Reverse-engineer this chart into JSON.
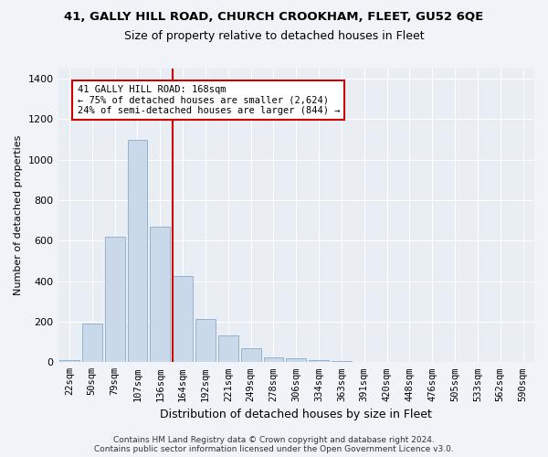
{
  "title1": "41, GALLY HILL ROAD, CHURCH CROOKHAM, FLEET, GU52 6QE",
  "title2": "Size of property relative to detached houses in Fleet",
  "xlabel": "Distribution of detached houses by size in Fleet",
  "ylabel": "Number of detached properties",
  "categories": [
    "22sqm",
    "50sqm",
    "79sqm",
    "107sqm",
    "136sqm",
    "164sqm",
    "192sqm",
    "221sqm",
    "249sqm",
    "278sqm",
    "306sqm",
    "334sqm",
    "363sqm",
    "391sqm",
    "420sqm",
    "448sqm",
    "476sqm",
    "505sqm",
    "533sqm",
    "562sqm",
    "590sqm"
  ],
  "values": [
    10,
    190,
    620,
    1100,
    670,
    425,
    215,
    130,
    70,
    25,
    20,
    10,
    5,
    3,
    1,
    1,
    0,
    0,
    0,
    0,
    0
  ],
  "bar_color": "#c9d9ea",
  "bar_edge_color": "#8aaac8",
  "red_line_color": "#cc0000",
  "annotation_text": "41 GALLY HILL ROAD: 168sqm\n← 75% of detached houses are smaller (2,624)\n24% of semi-detached houses are larger (844) →",
  "annotation_box_color": "#ffffff",
  "annotation_box_edge": "#cc0000",
  "footer1": "Contains HM Land Registry data © Crown copyright and database right 2024.",
  "footer2": "Contains public sector information licensed under the Open Government Licence v3.0.",
  "ylim": [
    0,
    1450
  ],
  "background_color": "#f0f4f8",
  "plot_background": "#e8eef4",
  "title1_fontsize": 9.5,
  "title2_fontsize": 9,
  "ylabel_fontsize": 8,
  "xlabel_fontsize": 9,
  "tick_fontsize": 7.5,
  "ytick_fontsize": 8,
  "footer_fontsize": 6.5
}
